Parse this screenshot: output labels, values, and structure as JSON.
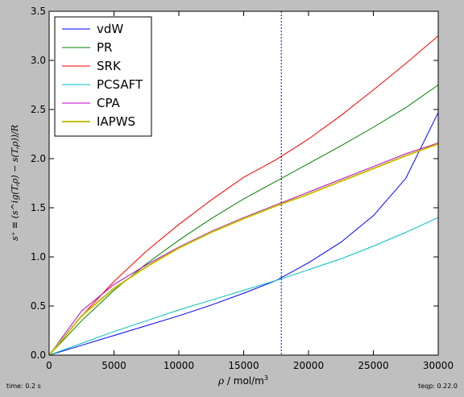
{
  "footer": {
    "left": "time: 0.2 s",
    "right": "teqp: 0.22.0"
  },
  "chart_data": {
    "type": "line",
    "xlabel_var": "ρ",
    "xlabel_unit": " / mol/m",
    "xlabel_sup": "3",
    "ylabel": "s⁺ ≡ (s^ig(T,ρ) − s(T,ρ))/R",
    "xlim": [
      0,
      30000
    ],
    "ylim": [
      0.0,
      3.5
    ],
    "xticks": [
      0,
      5000,
      10000,
      15000,
      20000,
      25000,
      30000
    ],
    "yticks": [
      0.0,
      0.5,
      1.0,
      1.5,
      2.0,
      2.5,
      3.0,
      3.5
    ],
    "ytick_labels": [
      "0.0",
      "0.5",
      "1.0",
      "1.5",
      "2.0",
      "2.5",
      "3.0",
      "3.5"
    ],
    "grid": false,
    "legend_position": "top-left",
    "vline_x": 17900,
    "vline_color": "#0000cc",
    "x": [
      0,
      2500,
      5000,
      7500,
      10000,
      12500,
      15000,
      17500,
      20000,
      22500,
      25000,
      27500,
      30000
    ],
    "series": [
      {
        "name": "vdW",
        "color": "#0000ff",
        "values": [
          0.0,
          0.1,
          0.2,
          0.3,
          0.4,
          0.51,
          0.63,
          0.76,
          0.94,
          1.15,
          1.42,
          1.8,
          2.47
        ]
      },
      {
        "name": "PR",
        "color": "#008000",
        "values": [
          0.0,
          0.35,
          0.66,
          0.93,
          1.17,
          1.39,
          1.59,
          1.77,
          1.95,
          2.13,
          2.32,
          2.52,
          2.75
        ]
      },
      {
        "name": "SRK",
        "color": "#ff0000",
        "values": [
          0.0,
          0.4,
          0.75,
          1.06,
          1.33,
          1.58,
          1.81,
          1.99,
          2.2,
          2.44,
          2.7,
          2.97,
          3.25
        ]
      },
      {
        "name": "PCSAFT",
        "color": "#00bfbf",
        "values": [
          0.0,
          0.12,
          0.24,
          0.35,
          0.46,
          0.56,
          0.66,
          0.76,
          0.87,
          0.98,
          1.11,
          1.25,
          1.4
        ]
      },
      {
        "name": "CPA",
        "color": "#bf00bf",
        "values": [
          0.0,
          0.45,
          0.72,
          0.92,
          1.1,
          1.26,
          1.4,
          1.53,
          1.66,
          1.79,
          1.92,
          2.05,
          2.16
        ]
      },
      {
        "name": "IAPWS",
        "color": "#bfbf00",
        "values": [
          0.0,
          0.4,
          0.68,
          0.9,
          1.09,
          1.25,
          1.39,
          1.52,
          1.64,
          1.77,
          1.9,
          2.03,
          2.15
        ]
      }
    ]
  }
}
